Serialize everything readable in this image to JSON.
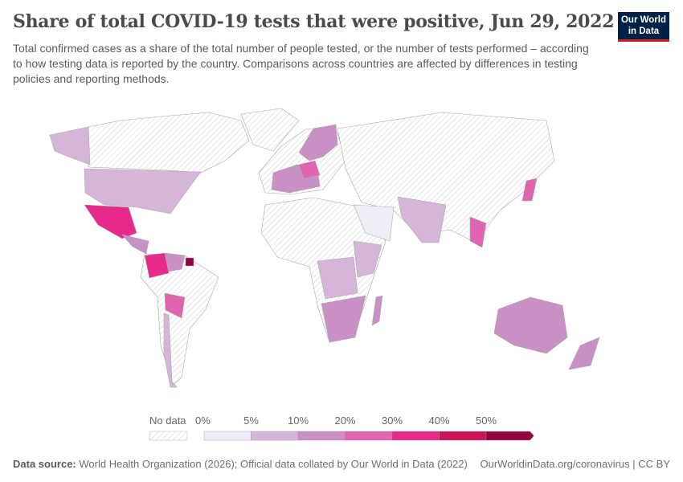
{
  "header": {
    "title": "Share of total COVID-19 tests that were positive, Jun 29, 2022",
    "subtitle": "Total confirmed cases as a share of the total number of people tested, or the number of tests performed – according to how testing data is reported by the country. Comparisons across countries are affected by differences in testing policies and reporting methods.",
    "logo_text": "Our World in Data"
  },
  "legend": {
    "no_data_label": "No data",
    "bins": [
      {
        "label": "0%",
        "color": "#efedf5"
      },
      {
        "label": "5%",
        "color": "#d5b6d9"
      },
      {
        "label": "10%",
        "color": "#c990c6"
      },
      {
        "label": "20%",
        "color": "#df65b0"
      },
      {
        "label": "30%",
        "color": "#e7298a"
      },
      {
        "label": "40%",
        "color": "#ce1256"
      },
      {
        "label": "50%",
        "color": "#91003f"
      }
    ]
  },
  "footer": {
    "source_label": "Data source:",
    "source_text": "World Health Organization (2026); Official data collated by Our World in Data (2022)",
    "url_text": "OurWorldinData.org/coronavirus | CC BY"
  }
}
